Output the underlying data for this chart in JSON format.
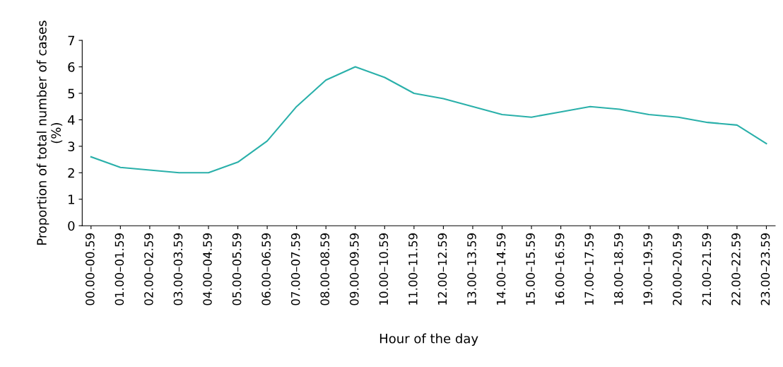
{
  "chart_data": {
    "type": "line",
    "xlabel": "Hour of the day",
    "ylabel": "Proportion of total number of cases\n(%)",
    "categories": [
      "00.00–00.59",
      "01.00–01.59",
      "02.00–02.59",
      "03.00–03.59",
      "04.00–04.59",
      "05.00–05.59",
      "06.00–06.59",
      "07.00–07.59",
      "08.00–08.59",
      "09.00–09.59",
      "10.00–10.59",
      "11.00–11.59",
      "12.00–12.59",
      "13.00–13.59",
      "14.00–14.59",
      "15.00–15.59",
      "16.00–16.59",
      "17.00–17.59",
      "18.00–18.59",
      "19.00–19.59",
      "20.00–20.59",
      "21.00–21.59",
      "22.00–22.59",
      "23.00–23.59"
    ],
    "series": [
      {
        "color": "#2ab0aa",
        "values": [
          2.6,
          2.2,
          2.1,
          2.0,
          2.0,
          2.4,
          3.2,
          4.5,
          5.5,
          6.0,
          5.6,
          5.0,
          4.8,
          4.5,
          4.2,
          4.1,
          4.3,
          4.5,
          4.4,
          4.2,
          4.1,
          3.9,
          3.8,
          3.1
        ]
      }
    ],
    "ylim": [
      0,
      7
    ],
    "yticks": [
      0,
      1,
      2,
      3,
      4,
      5,
      6,
      7
    ],
    "marker": "none",
    "line_style": "solid"
  }
}
